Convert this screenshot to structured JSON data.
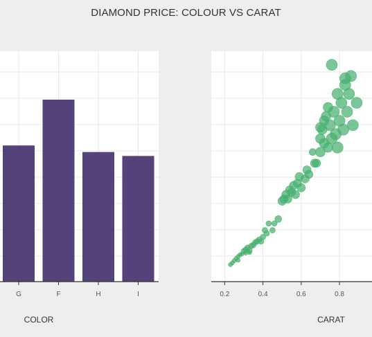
{
  "title": "DIAMOND PRICE: COLOUR VS CARAT",
  "colors": {
    "background": "#eeeeee",
    "panel": "#ffffff",
    "grid": "#e8e8e8",
    "bar": "#54427a",
    "point": "#47b06f",
    "axis": "#333333"
  },
  "chart_data": [
    {
      "type": "bar",
      "title": "",
      "xlabel": "COLOR",
      "ylabel": "",
      "categories": [
        "G",
        "F",
        "H",
        "I"
      ],
      "values": [
        5.2,
        6.95,
        4.95,
        4.8
      ],
      "ylim": [
        0,
        8.8
      ],
      "grid": true,
      "color": "#54427a"
    },
    {
      "type": "scatter",
      "title": "",
      "xlabel": "CARAT",
      "ylabel": "",
      "xticks": [
        0.2,
        0.4,
        0.6,
        0.8
      ],
      "xlim": [
        0.13,
        0.97
      ],
      "ylim": [
        0,
        5000
      ],
      "grid": true,
      "color": "#47b06f",
      "points": [
        [
          0.23,
          380,
          3
        ],
        [
          0.24,
          420,
          3
        ],
        [
          0.25,
          470,
          3
        ],
        [
          0.26,
          520,
          3
        ],
        [
          0.27,
          560,
          3
        ],
        [
          0.28,
          600,
          3
        ],
        [
          0.29,
          620,
          3
        ],
        [
          0.3,
          680,
          4
        ],
        [
          0.31,
          720,
          4
        ],
        [
          0.32,
          760,
          4
        ],
        [
          0.33,
          700,
          4
        ],
        [
          0.34,
          800,
          4
        ],
        [
          0.35,
          820,
          4
        ],
        [
          0.31,
          640,
          3
        ],
        [
          0.36,
          880,
          4
        ],
        [
          0.37,
          900,
          4
        ],
        [
          0.38,
          940,
          4
        ],
        [
          0.4,
          1000,
          4
        ],
        [
          0.41,
          1150,
          4
        ],
        [
          0.42,
          1080,
          4
        ],
        [
          0.43,
          1300,
          4
        ],
        [
          0.45,
          1150,
          4
        ],
        [
          0.5,
          1800,
          6
        ],
        [
          0.51,
          1850,
          6
        ],
        [
          0.52,
          1950,
          6
        ],
        [
          0.53,
          1850,
          6
        ],
        [
          0.54,
          2050,
          6
        ],
        [
          0.55,
          2000,
          6
        ],
        [
          0.56,
          2150,
          6
        ],
        [
          0.57,
          1950,
          6
        ],
        [
          0.58,
          2200,
          6
        ],
        [
          0.6,
          2100,
          6
        ],
        [
          0.62,
          2300,
          6
        ],
        [
          0.63,
          2500,
          6
        ],
        [
          0.64,
          2400,
          6
        ],
        [
          0.66,
          2900,
          5
        ],
        [
          0.67,
          2650,
          6
        ],
        [
          0.68,
          2650,
          6
        ],
        [
          0.7,
          2900,
          7
        ],
        [
          0.7,
          3200,
          7
        ],
        [
          0.71,
          3400,
          7
        ],
        [
          0.72,
          3100,
          7
        ],
        [
          0.73,
          3700,
          7
        ],
        [
          0.74,
          3000,
          7
        ],
        [
          0.75,
          3500,
          8
        ],
        [
          0.76,
          3200,
          8
        ],
        [
          0.77,
          3800,
          8
        ],
        [
          0.78,
          3300,
          8
        ],
        [
          0.79,
          4200,
          8
        ],
        [
          0.8,
          3600,
          8
        ],
        [
          0.81,
          4000,
          8
        ],
        [
          0.82,
          3400,
          8
        ],
        [
          0.83,
          4400,
          8
        ],
        [
          0.84,
          3800,
          8
        ],
        [
          0.85,
          4200,
          8
        ],
        [
          0.87,
          3500,
          8
        ],
        [
          0.89,
          4000,
          8
        ],
        [
          0.76,
          4850,
          8
        ],
        [
          0.83,
          4550,
          8
        ],
        [
          0.86,
          4600,
          8
        ],
        [
          0.7,
          3450,
          7
        ],
        [
          0.72,
          3600,
          7
        ],
        [
          0.74,
          3900,
          7
        ],
        [
          0.79,
          3000,
          8
        ],
        [
          0.48,
          1400,
          5
        ],
        [
          0.46,
          1300,
          4
        ],
        [
          0.39,
          900,
          4
        ],
        [
          0.33,
          650,
          3
        ],
        [
          0.27,
          480,
          3
        ],
        [
          0.59,
          2350,
          6
        ]
      ]
    }
  ]
}
